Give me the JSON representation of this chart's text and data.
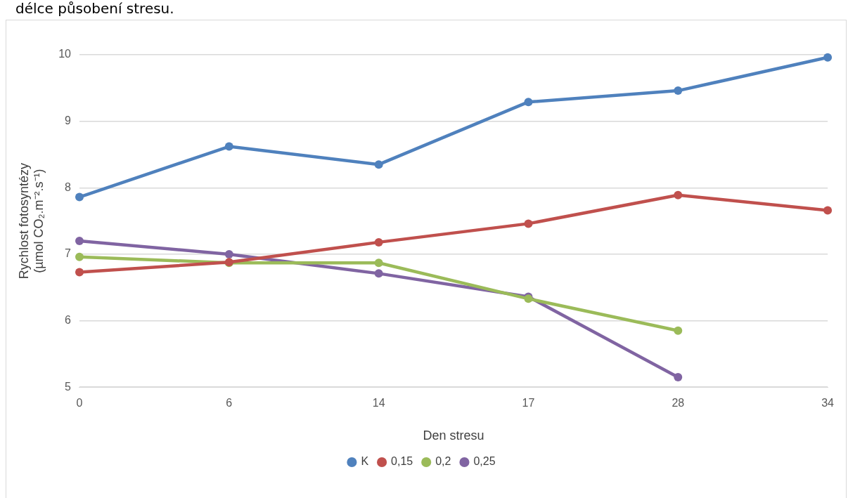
{
  "chart_data": {
    "type": "line",
    "annotations": [
      "délce působení stresu."
    ],
    "xlabel": "Den stresu",
    "ylabel": "Rychlost fotosyntézy\n(µmol CO₂.m⁻².s⁻¹)",
    "categories": [
      "0",
      "6",
      "14",
      "17",
      "28",
      "34"
    ],
    "series": [
      {
        "name": "K",
        "color": "#4f81bd",
        "values": [
          7.86,
          8.62,
          8.35,
          9.29,
          9.46,
          9.96
        ]
      },
      {
        "name": "0,15",
        "color": "#c0504d",
        "values": [
          6.73,
          6.88,
          7.18,
          7.46,
          7.89,
          7.66
        ]
      },
      {
        "name": "0,2",
        "color": "#9bbb59",
        "values": [
          6.96,
          6.87,
          6.87,
          6.33,
          5.85,
          null
        ]
      },
      {
        "name": "0,25",
        "color": "#8064a2",
        "values": [
          7.2,
          7.0,
          6.71,
          6.36,
          5.15,
          null
        ]
      }
    ],
    "ylim": [
      5,
      10
    ],
    "yticks": [
      5,
      6,
      7,
      8,
      9,
      10
    ],
    "grid": "y",
    "legend": "bottom",
    "marker": "circle",
    "line_style": "solid"
  }
}
